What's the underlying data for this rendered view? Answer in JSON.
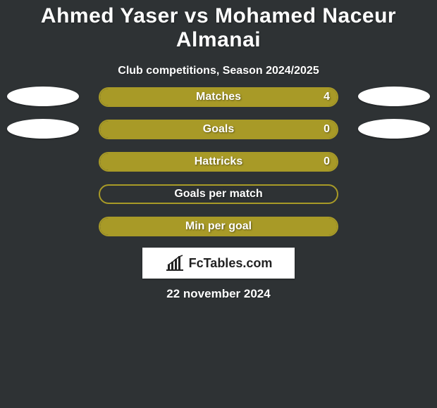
{
  "background_color": "#2e3234",
  "title": {
    "text": "Ahmed Yaser vs Mohamed Naceur Almanai",
    "color": "#ffffff",
    "fontsize": 30
  },
  "subtitle": {
    "text": "Club competitions, Season 2024/2025",
    "color": "#ffffff",
    "fontsize": 16
  },
  "chart": {
    "bar_border_color": "#a89a27",
    "bar_fill_color": "#a89a27",
    "bar_empty_color": "#2e3234",
    "label_color": "#ffffff",
    "value_color": "#ffffff",
    "rows": [
      {
        "label": "Matches",
        "value": "4",
        "fill_pct": 100,
        "show_value": true,
        "left_ellipse": true,
        "right_ellipse": true
      },
      {
        "label": "Goals",
        "value": "0",
        "fill_pct": 100,
        "show_value": true,
        "left_ellipse": true,
        "right_ellipse": true
      },
      {
        "label": "Hattricks",
        "value": "0",
        "fill_pct": 100,
        "show_value": true,
        "left_ellipse": false,
        "right_ellipse": false
      },
      {
        "label": "Goals per match",
        "value": "",
        "fill_pct": 0,
        "show_value": false,
        "left_ellipse": false,
        "right_ellipse": false
      },
      {
        "label": "Min per goal",
        "value": "",
        "fill_pct": 100,
        "show_value": false,
        "left_ellipse": false,
        "right_ellipse": false
      }
    ]
  },
  "brand": {
    "text": "FcTables.com",
    "icon_color": "#222222",
    "box_bg": "#ffffff"
  },
  "date": {
    "text": "22 november 2024",
    "color": "#ffffff"
  }
}
